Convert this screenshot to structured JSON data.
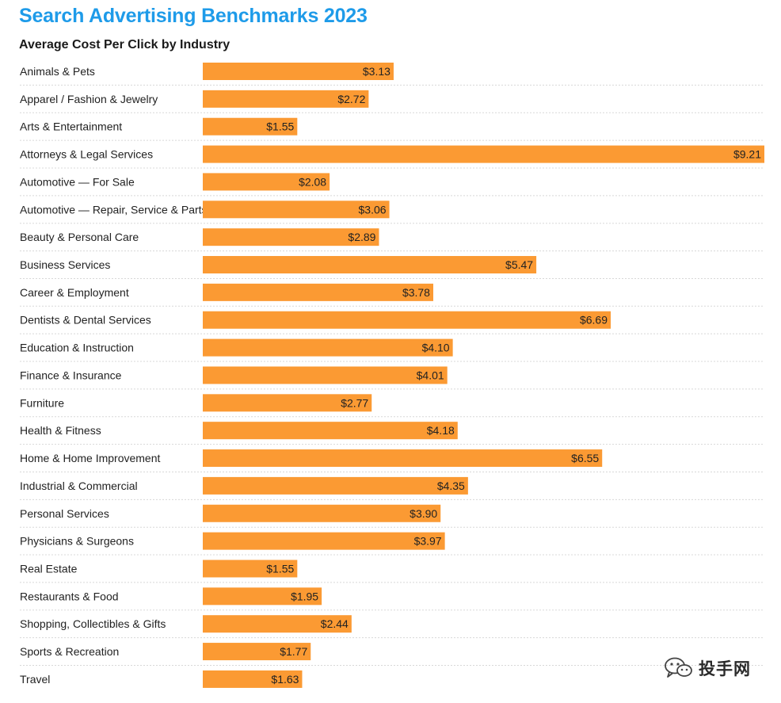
{
  "chart_data": {
    "type": "bar",
    "orientation": "horizontal",
    "title": "Search Advertising Benchmarks 2023",
    "subtitle": "Average Cost Per Click by Industry",
    "categories": [
      "Animals & Pets",
      "Apparel / Fashion & Jewelry",
      "Arts & Entertainment",
      "Attorneys & Legal Services",
      "Automotive — For Sale",
      "Automotive — Repair, Service & Parts",
      "Beauty & Personal Care",
      "Business Services",
      "Career & Employment",
      "Dentists & Dental Services",
      "Education & Instruction",
      "Finance & Insurance",
      "Furniture",
      "Health & Fitness",
      "Home & Home Improvement",
      "Industrial & Commercial",
      "Personal Services",
      "Physicians & Surgeons",
      "Real Estate",
      "Restaurants & Food",
      "Shopping, Collectibles & Gifts",
      "Sports & Recreation",
      "Travel"
    ],
    "values": [
      3.13,
      2.72,
      1.55,
      9.21,
      2.08,
      3.06,
      2.89,
      5.47,
      3.78,
      6.69,
      4.1,
      4.01,
      2.77,
      4.18,
      6.55,
      4.35,
      3.9,
      3.97,
      1.55,
      1.95,
      2.44,
      1.77,
      1.63
    ],
    "value_labels": [
      "$3.13",
      "$2.72",
      "$1.55",
      "$9.21",
      "$2.08",
      "$3.06",
      "$2.89",
      "$5.47",
      "$3.78",
      "$6.69",
      "$4.10",
      "$4.01",
      "$2.77",
      "$4.18",
      "$6.55",
      "$4.35",
      "$3.90",
      "$3.97",
      "$1.55",
      "$1.95",
      "$2.44",
      "$1.77",
      "$1.63"
    ],
    "xlim": [
      0,
      9.21
    ],
    "bar_color": "#fb9a33",
    "title_color": "#1e9be9",
    "grid": false,
    "legend": "none"
  },
  "watermark": {
    "text": "投手网",
    "icon": "wechat-icon"
  }
}
